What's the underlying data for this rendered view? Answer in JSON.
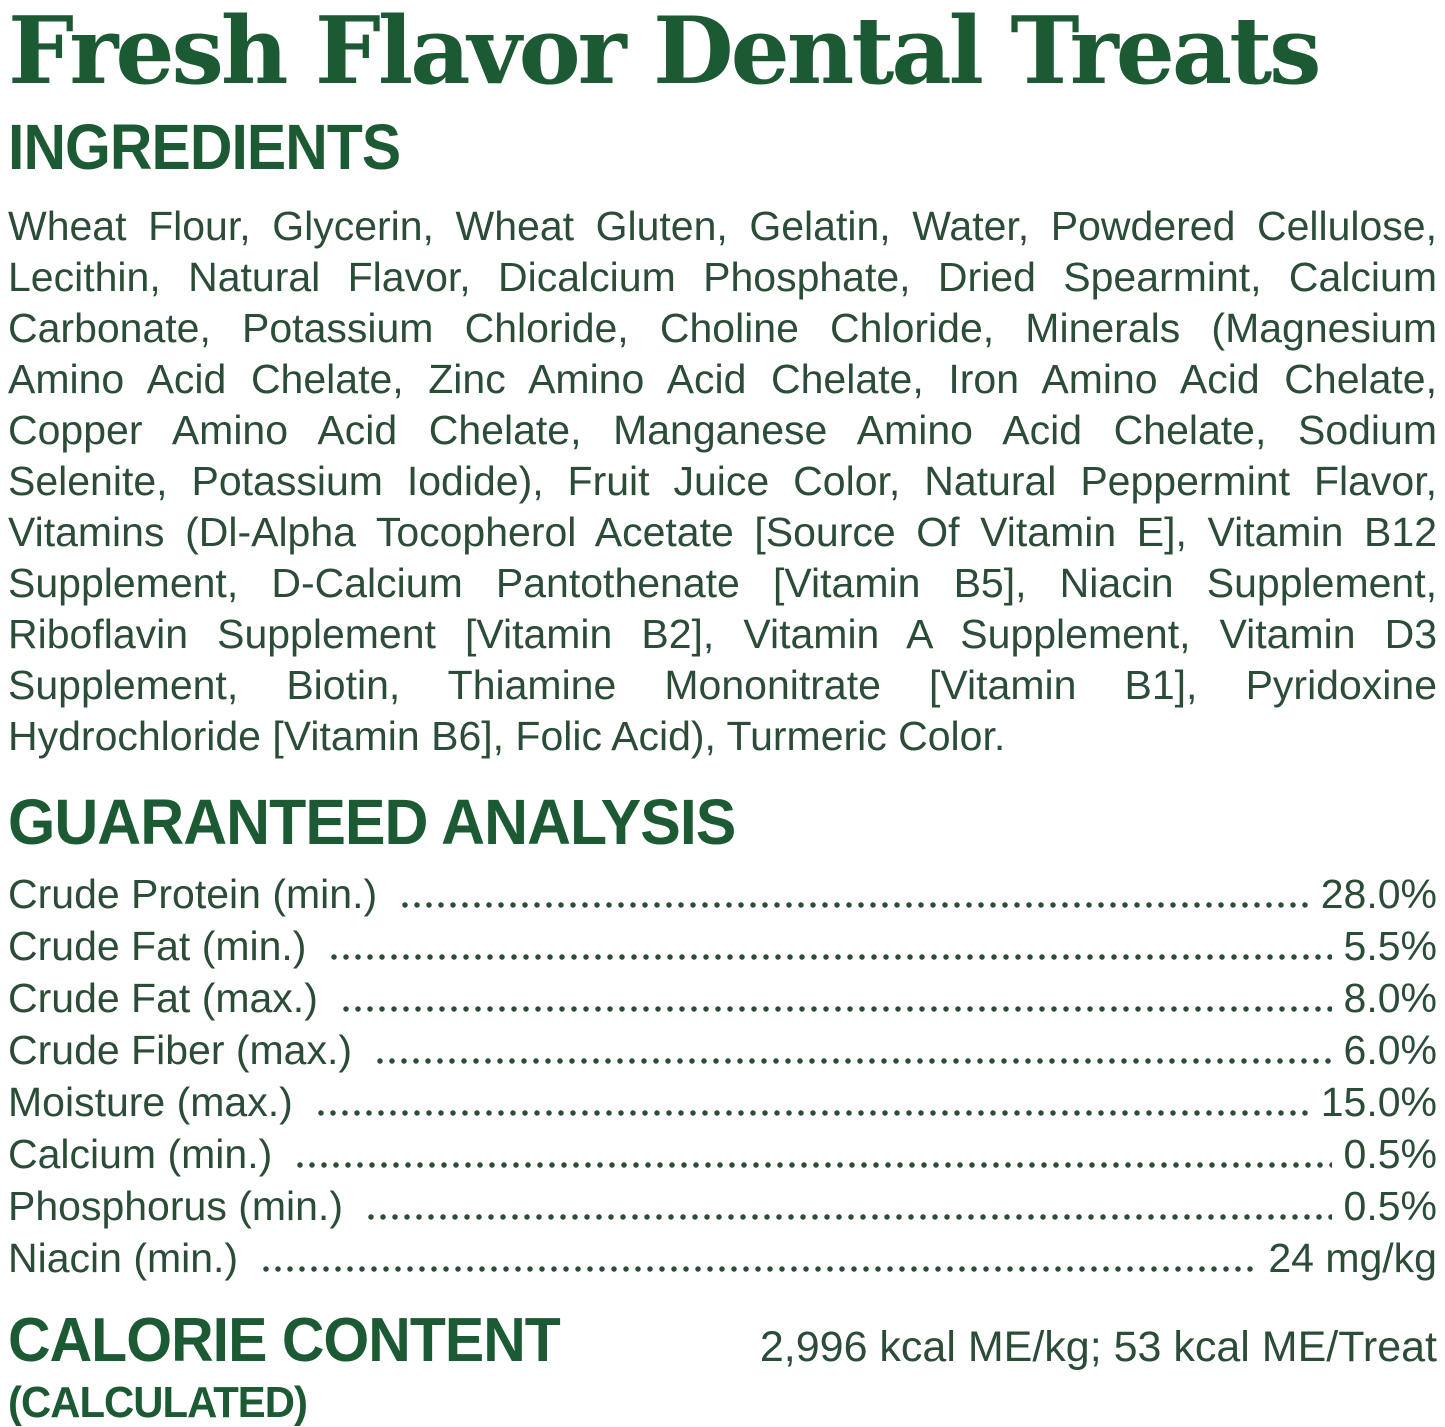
{
  "title": "Fresh Flavor Dental Treats",
  "colors": {
    "heading_green": "#1c5a34",
    "body_green": "#2b4c36",
    "background": "#ffffff"
  },
  "ingredients": {
    "heading": "INGREDIENTS",
    "lines": [
      "Wheat Flour, Glycerin, Wheat Gluten, Gelatin, Water, Powdered Cellulose,",
      "Lecithin, Natural Flavor, Dicalcium Phosphate, Dried Spearmint, Calcium",
      "Carbonate, Potassium Chloride, Choline Chloride, Minerals (Magnesium",
      "Amino Acid Chelate, Zinc Amino Acid Chelate, Iron Amino Acid Chelate,",
      "Copper Amino Acid Chelate, Manganese Amino Acid Chelate, Sodium",
      "Selenite, Potassium Iodide), Fruit Juice Color, Natural Peppermint Flavor,",
      "Vitamins (Dl-Alpha Tocopherol Acetate [Source Of Vitamin E], Vitamin B12",
      "Supplement, D-Calcium Pantothenate [Vitamin B5], Niacin Supplement,",
      "Riboflavin Supplement [Vitamin B2], Vitamin A Supplement, Vitamin D3",
      "Supplement, Biotin, Thiamine Mononitrate [Vitamin B1], Pyridoxine",
      "Hydrochloride [Vitamin B6], Folic Acid), Turmeric Color."
    ]
  },
  "guaranteed_analysis": {
    "heading": "GUARANTEED ANALYSIS",
    "rows": [
      {
        "label": "Crude Protein (min.)",
        "value": "28.0%"
      },
      {
        "label": "Crude Fat (min.)",
        "value": "5.5%"
      },
      {
        "label": "Crude Fat (max.)",
        "value": "8.0%"
      },
      {
        "label": "Crude Fiber (max.)",
        "value": "6.0%"
      },
      {
        "label": "Moisture (max.)",
        "value": "15.0%"
      },
      {
        "label": "Calcium (min.)",
        "value": "0.5%"
      },
      {
        "label": "Phosphorus (min.)",
        "value": "0.5%"
      },
      {
        "label": "Niacin (min.)",
        "value": "24 mg/kg"
      }
    ]
  },
  "calorie_content": {
    "heading": "CALORIE CONTENT",
    "subheading": "(CALCULATED)",
    "value": "2,996 kcal ME/kg; 53 kcal ME/Treat"
  }
}
